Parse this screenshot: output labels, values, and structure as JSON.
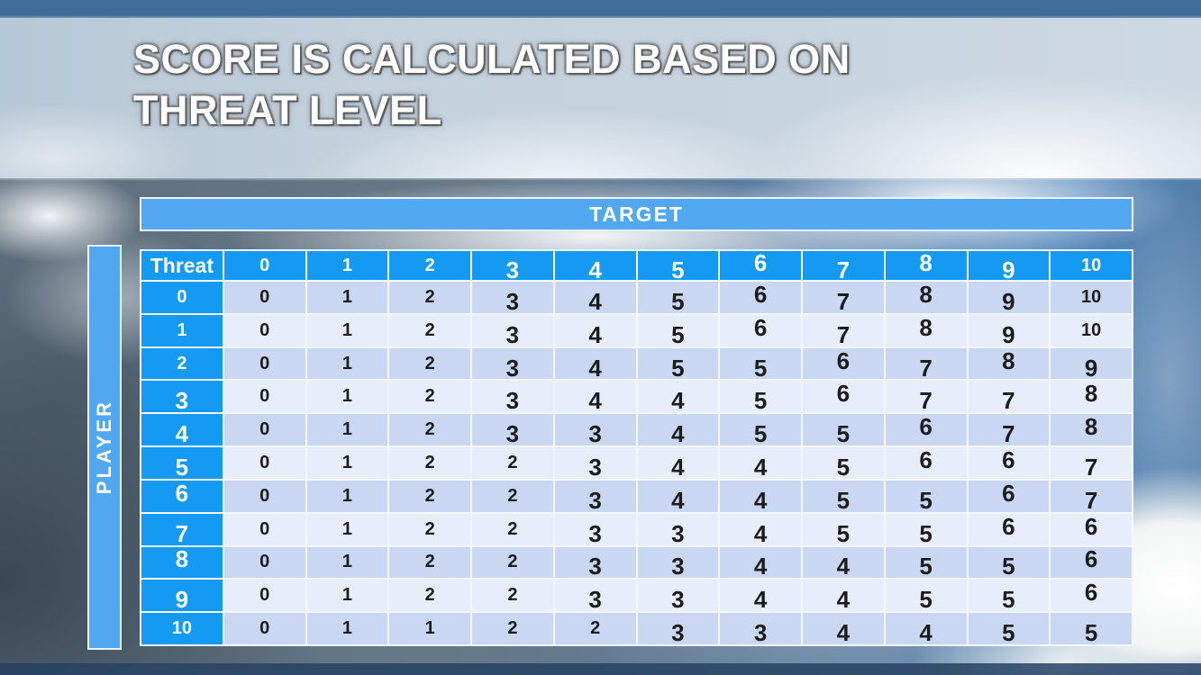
{
  "title": {
    "lines": [
      "SCORE IS CALCULATED BASED ON",
      "THREAT LEVEL"
    ]
  },
  "matrix": {
    "x_axis_label": "TARGET",
    "y_axis_label": "PLAYER",
    "corner_label": "Threat",
    "col_headers": [
      "0",
      "1",
      "2",
      "3",
      "4",
      "5",
      "6",
      "7",
      "8",
      "9",
      "10"
    ],
    "rows": [
      {
        "header": "0",
        "values": [
          0,
          1,
          2,
          3,
          4,
          5,
          6,
          7,
          8,
          9,
          10
        ]
      },
      {
        "header": "1",
        "values": [
          0,
          1,
          2,
          3,
          4,
          5,
          6,
          7,
          8,
          9,
          10
        ]
      },
      {
        "header": "2",
        "values": [
          0,
          1,
          2,
          3,
          4,
          5,
          5,
          6,
          7,
          8,
          9
        ]
      },
      {
        "header": "3",
        "values": [
          0,
          1,
          2,
          3,
          4,
          4,
          5,
          6,
          7,
          7,
          8
        ]
      },
      {
        "header": "4",
        "values": [
          0,
          1,
          2,
          3,
          3,
          4,
          5,
          5,
          6,
          7,
          8
        ]
      },
      {
        "header": "5",
        "values": [
          0,
          1,
          2,
          2,
          3,
          4,
          4,
          5,
          6,
          6,
          7
        ]
      },
      {
        "header": "6",
        "values": [
          0,
          1,
          2,
          2,
          3,
          4,
          4,
          5,
          5,
          6,
          7
        ]
      },
      {
        "header": "7",
        "values": [
          0,
          1,
          2,
          2,
          3,
          3,
          4,
          5,
          5,
          6,
          6
        ]
      },
      {
        "header": "8",
        "values": [
          0,
          1,
          2,
          2,
          3,
          3,
          4,
          4,
          5,
          5,
          6
        ]
      },
      {
        "header": "9",
        "values": [
          0,
          1,
          2,
          2,
          3,
          3,
          4,
          4,
          5,
          5,
          6
        ]
      },
      {
        "header": "10",
        "values": [
          0,
          1,
          1,
          2,
          2,
          3,
          3,
          4,
          4,
          5,
          5
        ]
      }
    ]
  },
  "colors": {
    "header_blue": "#149af3",
    "bar_blue": "#51a7f0",
    "row_even": "#c9d7f3",
    "row_odd": "#e7edfb",
    "cell_border": "#f3f8fd",
    "body_text": "#1c1c1c"
  }
}
